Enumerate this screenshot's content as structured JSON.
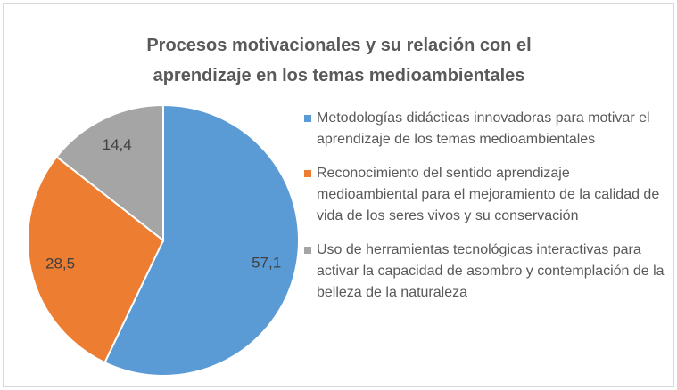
{
  "chart_data": {
    "type": "pie",
    "title": "Procesos motivacionales y su relación con el aprendizaje en los temas medioambientales",
    "categories": [
      "Metodologías didácticas innovadoras para motivar el aprendizaje de los temas medioambientales",
      "Reconocimiento del  sentido aprendizaje medioambiental para el mejoramiento de la calidad de vida de los seres vivos y su conservación",
      "Uso de herramientas tecnológicas interactivas para activar la capacidad de asombro y contemplación de la belleza de la naturaleza"
    ],
    "values": [
      57.1,
      28.5,
      14.4
    ],
    "value_labels": [
      "57,1",
      "28,5",
      "14,4"
    ],
    "colors": [
      "#5b9bd5",
      "#ed7d31",
      "#a5a5a5"
    ],
    "legend": "right"
  }
}
